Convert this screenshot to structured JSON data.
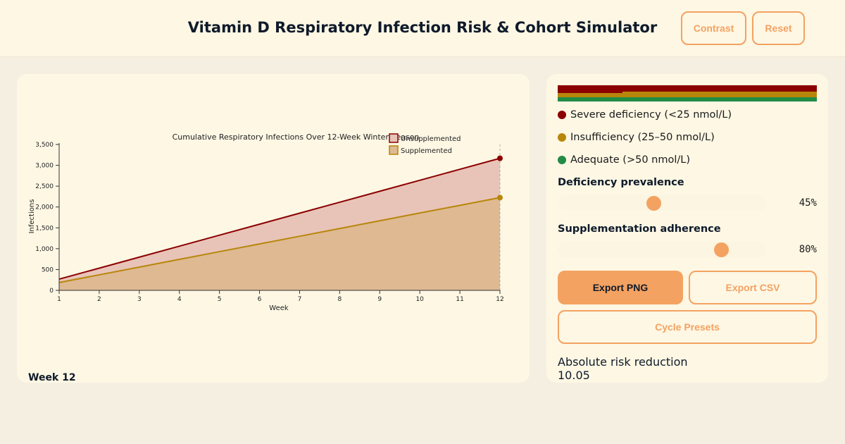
{
  "header": {
    "title": "Vitamin D Respiratory Infection Risk & Cohort Simulator",
    "contrast_label": "Contrast",
    "reset_label": "Reset"
  },
  "chart_data": {
    "type": "area",
    "title": "Cumulative Respiratory Infections Over 12-Week Winter Season",
    "xlabel": "Week",
    "ylabel": "Infections",
    "x": [
      1,
      2,
      3,
      4,
      5,
      6,
      7,
      8,
      9,
      10,
      11,
      12
    ],
    "x_ticks": [
      "1",
      "2",
      "3",
      "4",
      "5",
      "6",
      "7",
      "8",
      "9",
      "10",
      "11",
      "12"
    ],
    "y_ticks": [
      "0",
      "500",
      "1,000",
      "1,500",
      "2,000",
      "2,500",
      "3,000",
      "3,500"
    ],
    "xlim": [
      1,
      12
    ],
    "ylim": [
      0,
      3500
    ],
    "grid": false,
    "legend_position": "top-right",
    "series": [
      {
        "name": "Unsupplemented",
        "color": "#8b0000",
        "fill": "#e8c4b8",
        "values": [
          270,
          533,
          797,
          1060,
          1324,
          1587,
          1851,
          2114,
          2378,
          2641,
          2905,
          3168
        ]
      },
      {
        "name": "Supplemented",
        "color": "#b8860b",
        "fill": "#deb992",
        "values": [
          188,
          373,
          558,
          744,
          929,
          1114,
          1299,
          1484,
          1670,
          1855,
          2040,
          2225
        ]
      }
    ]
  },
  "week_label": "Week 12",
  "legend": [
    {
      "label": "Severe deficiency (<25 nmol/L)",
      "color": "#8b0000"
    },
    {
      "label": "Insufficiency (25–50 nmol/L)",
      "color": "#b8860b"
    },
    {
      "label": "Adequate (>50 nmol/L)",
      "color": "#238b45"
    }
  ],
  "controls": {
    "prevalence": {
      "label": "Deficiency prevalence",
      "value": 0.45,
      "value_text": "45%"
    },
    "adherence": {
      "label": "Supplementation adherence",
      "value": 0.8,
      "value_text": "80%"
    }
  },
  "actions": {
    "export_png": "Export PNG",
    "export_csv": "Export CSV",
    "cycle_presets": "Cycle Presets"
  },
  "result": {
    "absolute_risk_reduction": "Absolute risk reduction 10.05"
  }
}
